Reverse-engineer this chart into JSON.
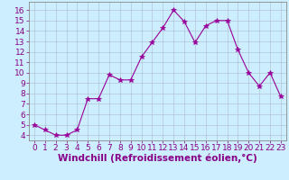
{
  "x": [
    0,
    1,
    2,
    3,
    4,
    5,
    6,
    7,
    8,
    9,
    10,
    11,
    12,
    13,
    14,
    15,
    16,
    17,
    18,
    19,
    20,
    21,
    22,
    23
  ],
  "y": [
    5.0,
    4.5,
    4.0,
    4.0,
    4.5,
    7.5,
    7.5,
    9.8,
    9.3,
    9.3,
    11.5,
    12.9,
    14.3,
    16.0,
    14.9,
    12.9,
    14.5,
    15.0,
    15.0,
    12.2,
    10.0,
    8.7,
    10.0,
    7.7
  ],
  "line_color": "#990099",
  "marker": "*",
  "marker_size": 4,
  "bg_color": "#cceeff",
  "grid_color": "#aabbcc",
  "xlabel": "Windchill (Refroidissement éolien,°C)",
  "ylim": [
    3.5,
    16.8
  ],
  "xlim": [
    -0.5,
    23.5
  ],
  "yticks": [
    4,
    5,
    6,
    7,
    8,
    9,
    10,
    11,
    12,
    13,
    14,
    15,
    16
  ],
  "xticks": [
    0,
    1,
    2,
    3,
    4,
    5,
    6,
    7,
    8,
    9,
    10,
    11,
    12,
    13,
    14,
    15,
    16,
    17,
    18,
    19,
    20,
    21,
    22,
    23
  ],
  "tick_color": "#880088",
  "xlabel_color": "#880088",
  "axis_color": "#888888",
  "font_size": 6.5,
  "xlabel_font_size": 7.5
}
